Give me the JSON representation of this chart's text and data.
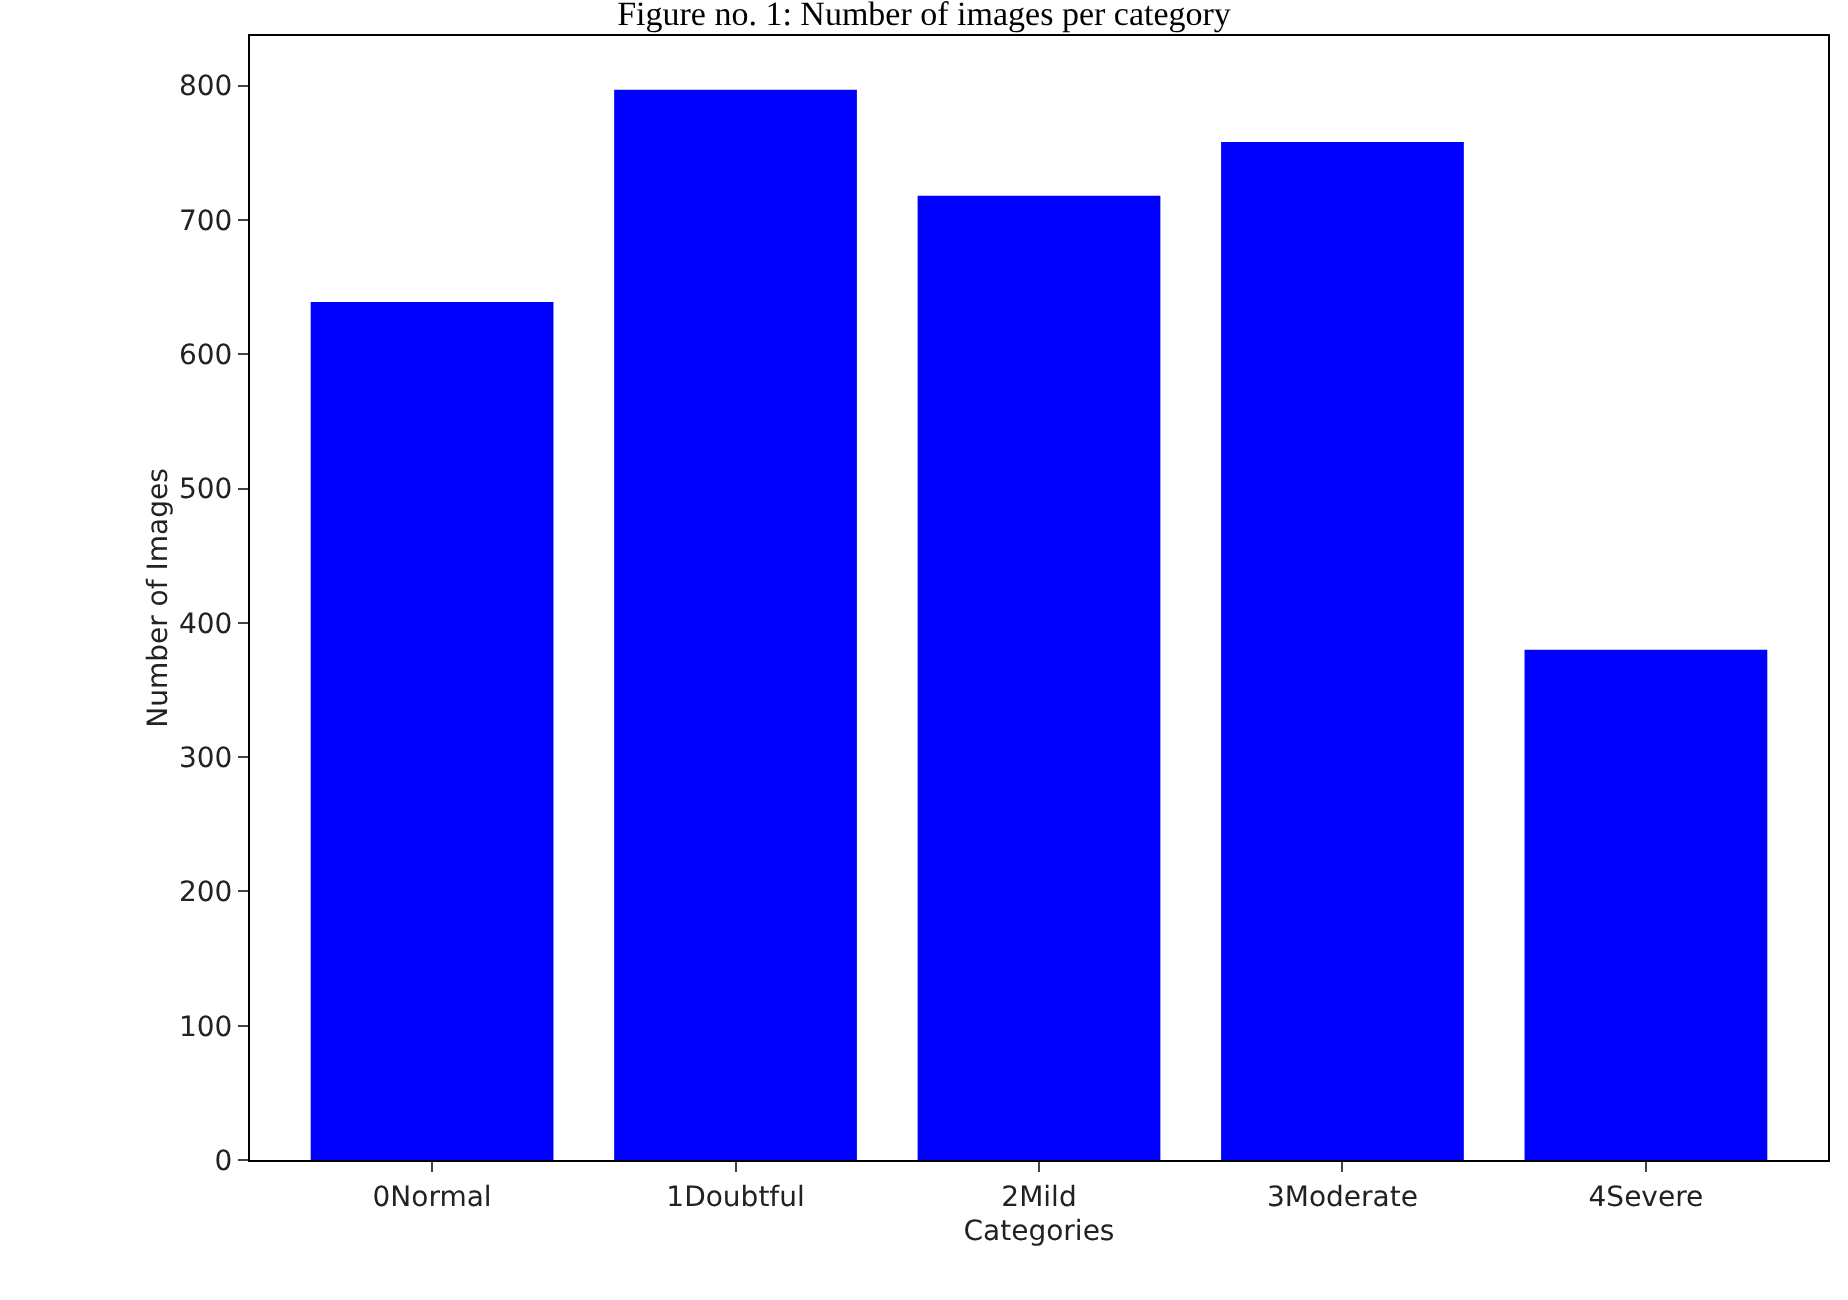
{
  "chart_data": {
    "type": "bar",
    "title": "Figure no. 1: Number of images per category",
    "xlabel": "Categories",
    "ylabel": "Number of Images",
    "categories": [
      "0Normal",
      "1Doubtful",
      "2Mild",
      "3Moderate",
      "4Severe"
    ],
    "values": [
      639,
      797,
      718,
      758,
      380
    ],
    "color": "#0000ff",
    "ylim": [
      0,
      837
    ],
    "yticks": [
      0,
      100,
      200,
      300,
      400,
      500,
      600,
      700,
      800
    ],
    "grid": false
  }
}
